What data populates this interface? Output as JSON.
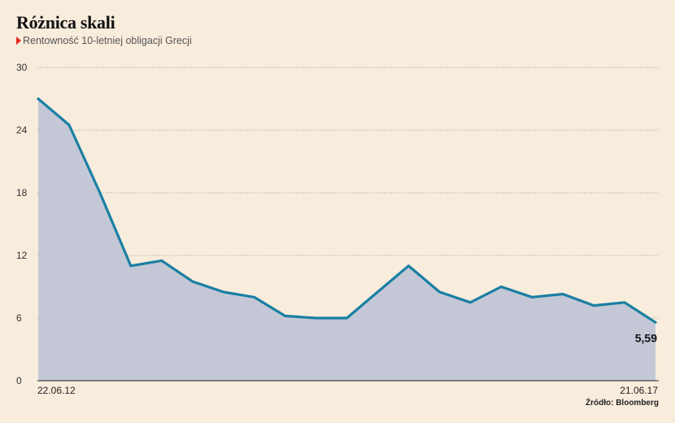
{
  "title": "Różnica skali",
  "subtitle": "Rentowność 10-letniej obligacji Grecji",
  "source": "Źródło: Bloomberg",
  "colors": {
    "background": "#f8ecdd",
    "line": "#1a7fa3",
    "area": "#c4c8d6",
    "marker": "#e3271c"
  },
  "chart_data": {
    "type": "area",
    "x": [
      "22.06.12",
      "09.2012",
      "12.2012",
      "03.2013",
      "06.2013",
      "09.2013",
      "12.2013",
      "03.2014",
      "06.2014",
      "09.2014",
      "12.2014",
      "03.2015",
      "06.2015",
      "09.2015",
      "12.2015",
      "03.2016",
      "06.2016",
      "09.2016",
      "12.2016",
      "03.2017",
      "21.06.17"
    ],
    "series": [
      {
        "values": [
          27.0,
          24.5,
          18.0,
          11.0,
          11.5,
          9.5,
          8.5,
          8.0,
          6.2,
          6.0,
          6.0,
          8.5,
          11.0,
          8.5,
          7.5,
          9.0,
          8.0,
          8.3,
          7.2,
          7.5,
          5.59
        ]
      }
    ],
    "xlim": [
      "22.06.12",
      "21.06.17"
    ],
    "ylim": [
      0,
      30
    ],
    "yticks": [
      "0",
      "6",
      "12",
      "18",
      "24",
      "30"
    ],
    "xticks": [
      "22.06.12",
      "21.06.17"
    ],
    "grid": true,
    "last_value_label": "5,59"
  }
}
